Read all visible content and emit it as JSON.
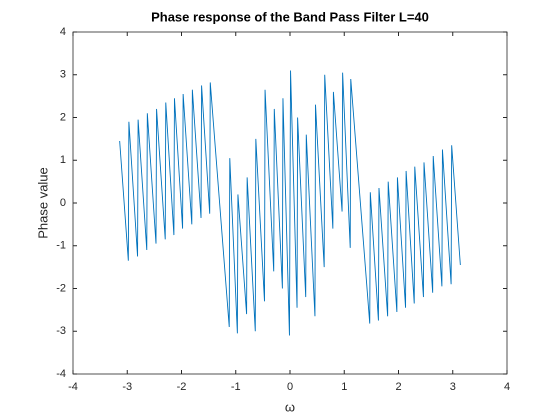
{
  "chart_data": {
    "type": "line",
    "title": "Phase response of the Band Pass Filter L=40",
    "x_label": "ω",
    "y_label": "Phase value",
    "xlim": [
      -4,
      4
    ],
    "ylim": [
      -4,
      4
    ],
    "xticks": [
      -4,
      -3,
      -2,
      -1,
      0,
      1,
      2,
      3,
      4
    ],
    "yticks": [
      -4,
      -3,
      -2,
      -1,
      0,
      1,
      2,
      3,
      4
    ],
    "grid": false,
    "x": [
      -3.14,
      -2.98,
      -2.97,
      -2.81,
      -2.8,
      -2.64,
      -2.63,
      -2.47,
      -2.46,
      -2.3,
      -2.29,
      -2.14,
      -2.13,
      -1.98,
      -1.97,
      -1.81,
      -1.8,
      -1.64,
      -1.63,
      -1.48,
      -1.47,
      -1.12,
      -1.11,
      -0.97,
      -0.96,
      -0.8,
      -0.79,
      -0.64,
      -0.63,
      -0.47,
      -0.46,
      -0.3,
      -0.29,
      -0.14,
      -0.13,
      -0.01,
      0.01,
      0.13,
      0.14,
      0.29,
      0.3,
      0.46,
      0.47,
      0.63,
      0.64,
      0.79,
      0.8,
      0.96,
      0.97,
      1.11,
      1.12,
      1.47,
      1.48,
      1.63,
      1.64,
      1.8,
      1.81,
      1.97,
      1.98,
      2.13,
      2.14,
      2.29,
      2.3,
      2.46,
      2.47,
      2.63,
      2.64,
      2.8,
      2.81,
      2.97,
      2.98,
      3.14
    ],
    "series": [
      {
        "name": "phase",
        "color": "#0072bd",
        "values": [
          1.45,
          -1.35,
          1.9,
          -1.25,
          1.95,
          -1.1,
          2.1,
          -0.95,
          2.2,
          -0.85,
          2.35,
          -0.75,
          2.45,
          -0.6,
          2.55,
          -0.5,
          2.65,
          -0.35,
          2.75,
          -0.25,
          2.82,
          -2.9,
          1.05,
          -3.05,
          0.2,
          -2.6,
          0.6,
          -3.0,
          1.5,
          -2.3,
          2.65,
          -1.6,
          2.2,
          -2.0,
          2.45,
          -3.1,
          3.1,
          -2.45,
          2.0,
          -2.2,
          1.6,
          -2.65,
          2.3,
          -1.5,
          3.0,
          -0.6,
          2.6,
          -0.2,
          3.05,
          -1.05,
          2.9,
          -2.82,
          0.25,
          -2.75,
          0.35,
          -2.65,
          0.5,
          -2.55,
          0.6,
          -2.45,
          0.75,
          -2.35,
          0.85,
          -2.2,
          0.95,
          -2.1,
          1.1,
          -1.95,
          1.25,
          -1.9,
          1.35,
          -1.45
        ]
      }
    ]
  }
}
